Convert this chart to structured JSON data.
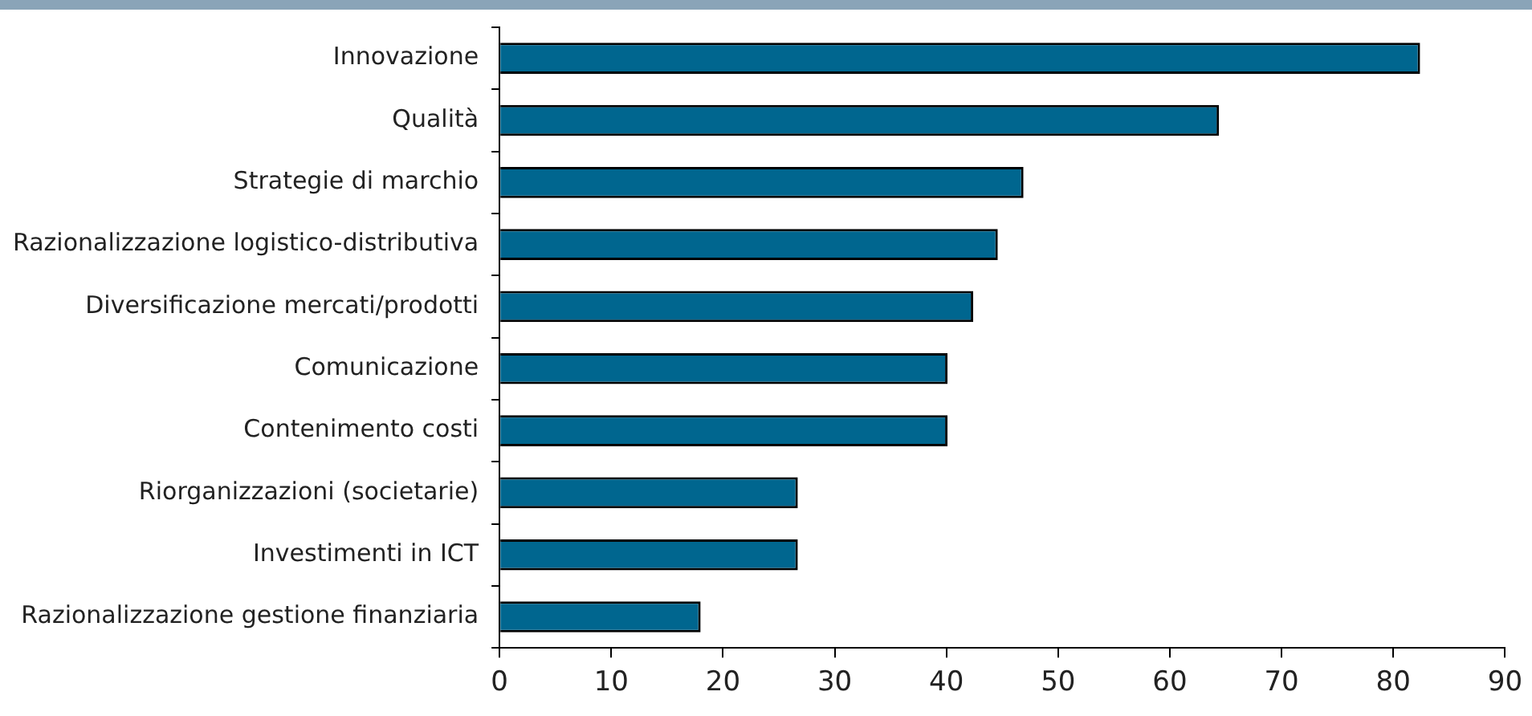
{
  "chart_data": {
    "type": "bar",
    "orientation": "horizontal",
    "categories": [
      "Innovazione",
      "Qualità",
      "Strategie di marchio",
      "Razionalizzazione logistico-distributiva",
      "Diversificazione mercati/prodotti",
      "Comunicazione",
      "Contenimento costi",
      "Riorganizzazioni (societarie)",
      "Investimenti in ICT",
      "Razionalizzazione gestione finanziaria"
    ],
    "values": [
      82.4,
      64.4,
      46.9,
      44.6,
      42.4,
      40.1,
      40.1,
      26.7,
      26.7,
      18.0
    ],
    "color": "#00668f",
    "xlim": [
      0,
      90
    ],
    "xticks": [
      0,
      10,
      20,
      30,
      40,
      50,
      60,
      70,
      80,
      90
    ],
    "grid": false,
    "legend": false
  }
}
